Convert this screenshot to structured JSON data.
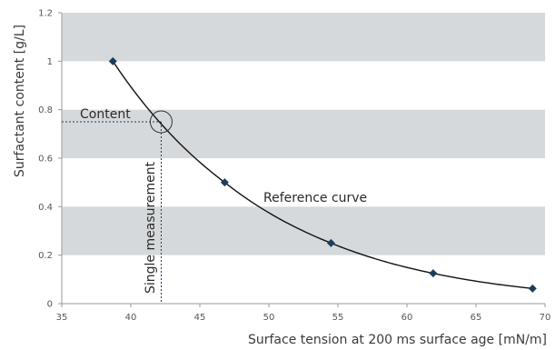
{
  "chart_data": {
    "type": "scatter",
    "xlabel": "Surface tension at 200 ms surface age [mN/m]",
    "ylabel": "Surfactant content [g/L]",
    "xlim": [
      35,
      70
    ],
    "ylim": [
      0,
      1.2
    ],
    "x_ticks": [
      35,
      40,
      45,
      50,
      55,
      60,
      65,
      70
    ],
    "y_ticks": [
      "0",
      "0.2",
      "0.4",
      "0.6",
      "0.8",
      "1",
      "1.2"
    ],
    "grid": "alternating horizontal bands",
    "band_color": "#d6d9db",
    "series": [
      {
        "marker": "diamond",
        "color": "#1d3d5c",
        "points": [
          {
            "x": 38.7,
            "y": 1.0
          },
          {
            "x": 46.8,
            "y": 0.5
          },
          {
            "x": 54.5,
            "y": 0.25
          },
          {
            "x": 61.9,
            "y": 0.125
          },
          {
            "x": 69.1,
            "y": 0.0625
          }
        ]
      }
    ],
    "curve_color": "#111111",
    "annotations": {
      "content": "Content",
      "single_measurement": "Single measurement",
      "reference_curve": "Reference curve",
      "intersection": {
        "x": 42.2,
        "y": 0.75
      }
    }
  }
}
